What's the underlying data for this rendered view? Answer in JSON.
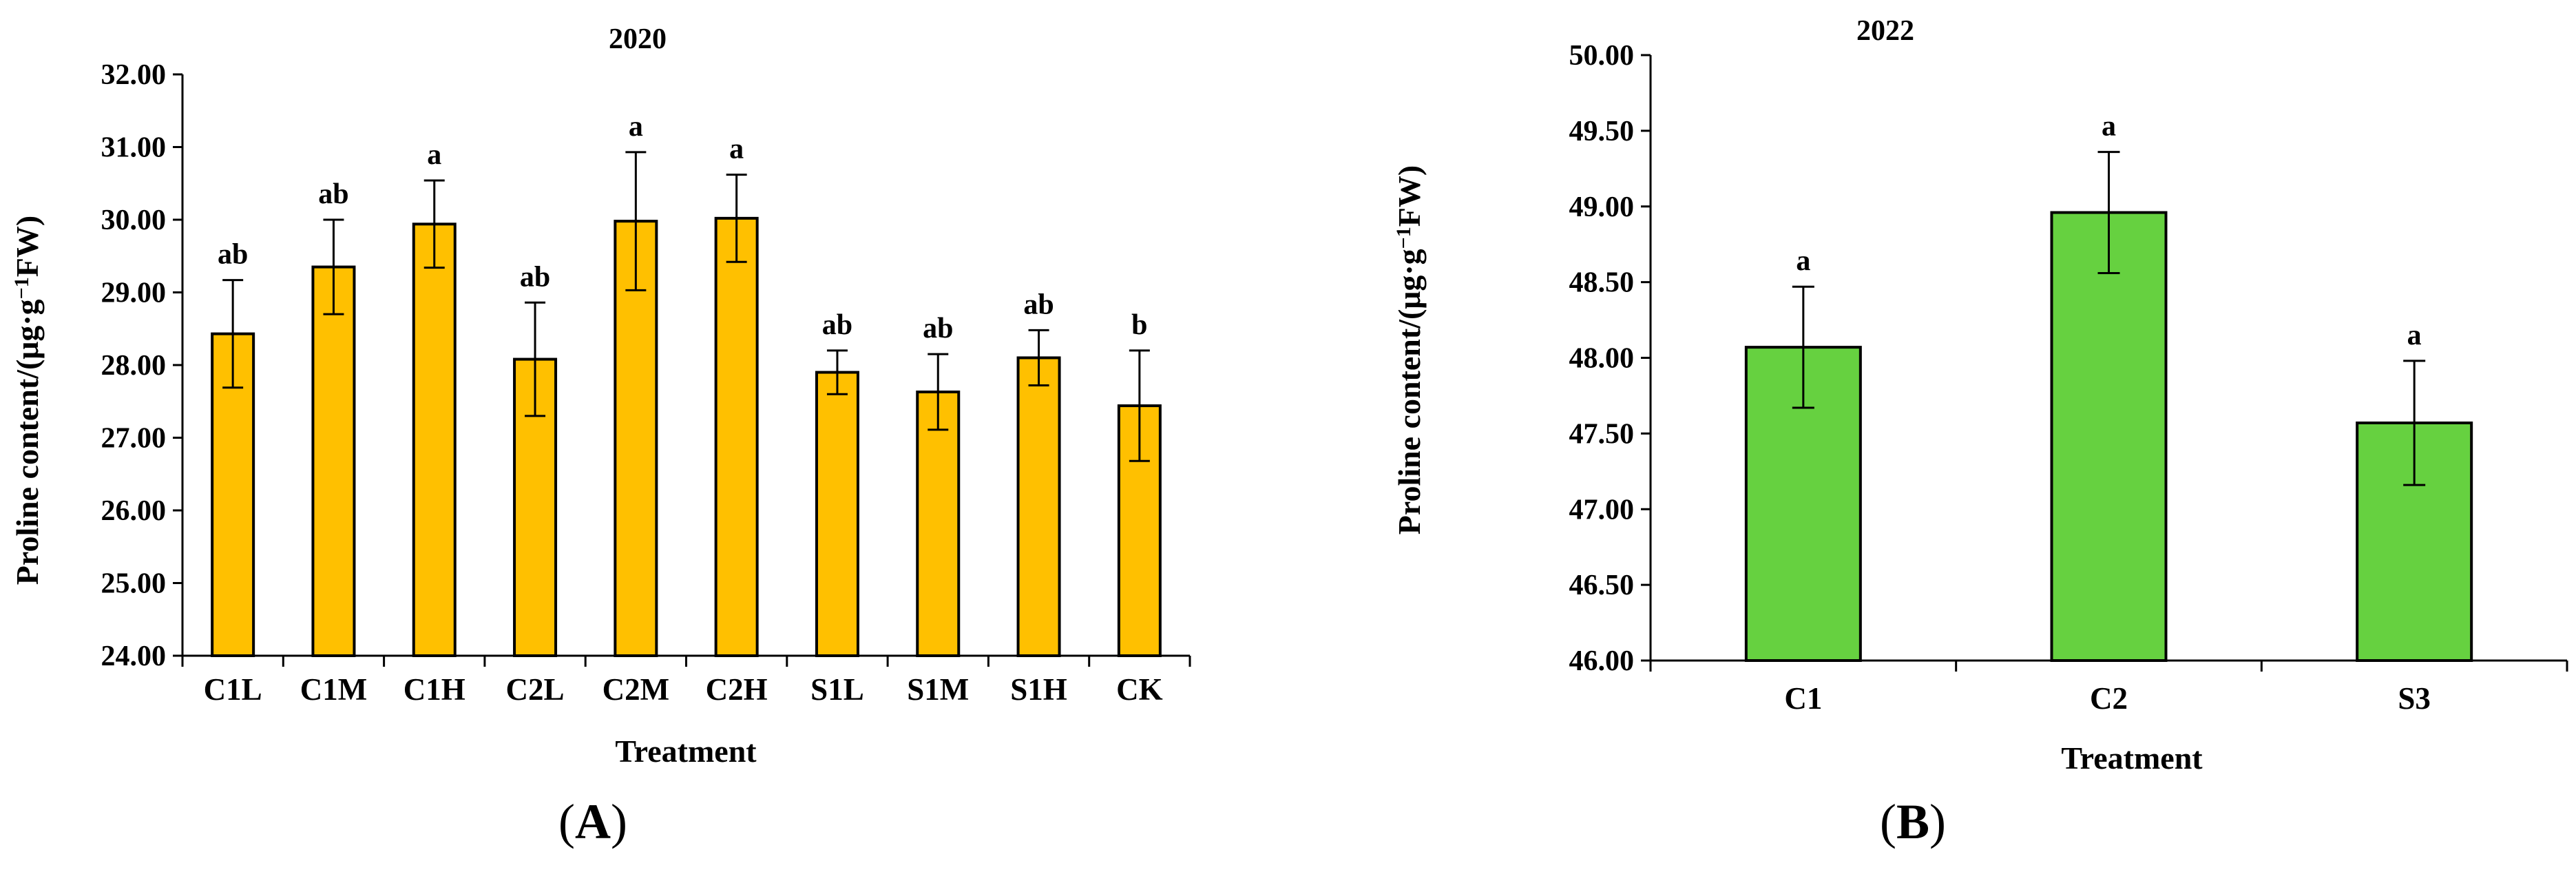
{
  "chart_data": [
    {
      "type": "bar",
      "panel_label": "A",
      "title": "2020",
      "xlabel": "Treatment",
      "ylabel_main": "Proline content/(μg·g",
      "ylabel_sup": "−1",
      "ylabel_end": "FW)",
      "ylim": [
        24.0,
        32.0
      ],
      "yticks": [
        "24.00",
        "25.00",
        "26.00",
        "27.00",
        "28.00",
        "29.00",
        "30.00",
        "31.00",
        "32.00"
      ],
      "categories": [
        "C1L",
        "C1M",
        "C1H",
        "C2L",
        "C2M",
        "C2H",
        "S1L",
        "S1M",
        "S1H",
        "CK"
      ],
      "values": [
        28.43,
        29.35,
        29.94,
        28.08,
        29.98,
        30.02,
        27.9,
        27.63,
        28.1,
        27.44
      ],
      "errors": [
        0.74,
        0.65,
        0.6,
        0.78,
        0.95,
        0.6,
        0.3,
        0.52,
        0.38,
        0.76
      ],
      "significance": [
        "ab",
        "ab",
        "a",
        "ab",
        "a",
        "a",
        "ab",
        "ab",
        "ab",
        "b"
      ],
      "bar_color": "#ffc000"
    },
    {
      "type": "bar",
      "panel_label": "B",
      "title": "2022",
      "xlabel": "Treatment",
      "ylabel_main": "Proline content/(μg·g",
      "ylabel_sup": "−1",
      "ylabel_end": "FW)",
      "ylim": [
        46.0,
        50.0
      ],
      "yticks": [
        "46.00",
        "46.50",
        "47.00",
        "47.50",
        "48.00",
        "48.50",
        "49.00",
        "49.50",
        "50.00"
      ],
      "categories": [
        "C1",
        "C2",
        "S3"
      ],
      "values": [
        48.07,
        48.96,
        47.57
      ],
      "errors": [
        0.4,
        0.4,
        0.41
      ],
      "significance": [
        "a",
        "a",
        "a"
      ],
      "bar_color": "#66d140"
    }
  ]
}
